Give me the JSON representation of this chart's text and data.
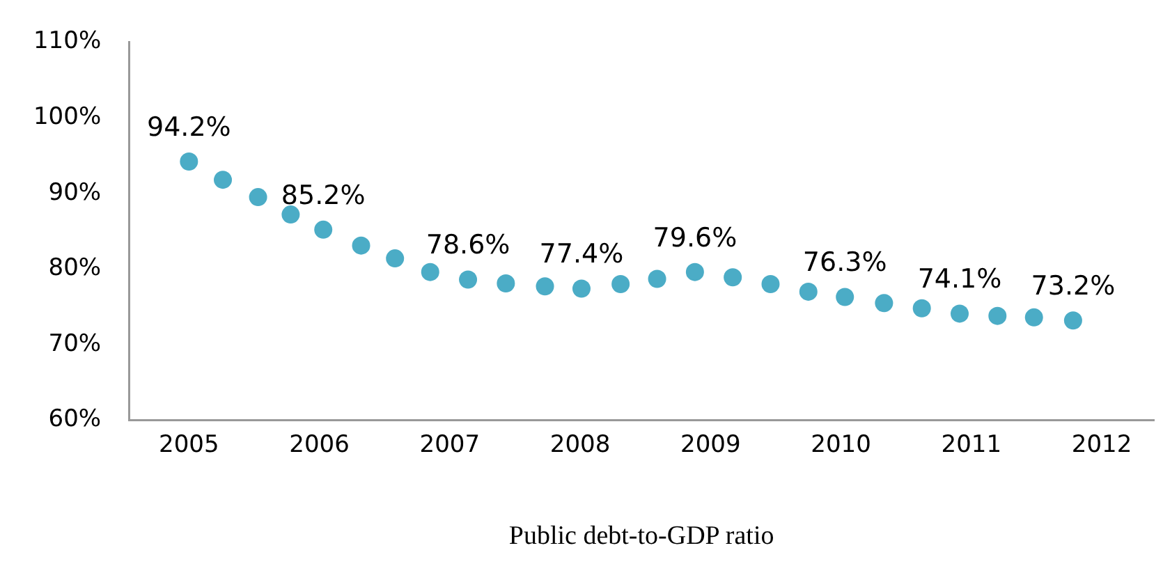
{
  "chart_data": {
    "type": "scatter",
    "xlabel": "Public debt-to-GDP ratio",
    "series": [
      {
        "color": "#4bacc6",
        "x": [
          2005.0,
          2005.26,
          2005.53,
          2005.78,
          2006.03,
          2006.32,
          2006.58,
          2006.85,
          2007.14,
          2007.43,
          2007.73,
          2008.01,
          2008.31,
          2008.59,
          2008.88,
          2009.17,
          2009.46,
          2009.75,
          2010.03,
          2010.33,
          2010.62,
          2010.91,
          2011.2,
          2011.48,
          2011.78
        ],
        "values": [
          94.2,
          91.8,
          89.5,
          87.2,
          85.2,
          83.1,
          81.4,
          79.6,
          78.6,
          78.1,
          77.7,
          77.4,
          78.0,
          78.7,
          79.6,
          78.9,
          78.0,
          77.0,
          76.3,
          75.5,
          74.8,
          74.1,
          73.8,
          73.6,
          73.2
        ],
        "value_labels": [
          "94.2%",
          null,
          null,
          null,
          "85.2%",
          null,
          null,
          null,
          "78.6%",
          null,
          null,
          "77.4%",
          null,
          null,
          "79.6%",
          null,
          null,
          null,
          "76.3%",
          null,
          null,
          "74.1%",
          null,
          null,
          "73.2%"
        ]
      }
    ],
    "xlim": [
      2004.54,
      2012.4
    ],
    "xticks": [
      2005,
      2006,
      2007,
      2008,
      2009,
      2010,
      2011,
      2012
    ],
    "ylim": [
      60,
      110
    ],
    "yticks": [
      {
        "value": 60,
        "label": "60%"
      },
      {
        "value": 70,
        "label": "70%"
      },
      {
        "value": 80,
        "label": "80%"
      },
      {
        "value": 90,
        "label": "90%"
      },
      {
        "value": 100,
        "label": "100%"
      },
      {
        "value": 110,
        "label": "110%"
      }
    ],
    "grid": false,
    "legend": false,
    "marker": "circle"
  }
}
